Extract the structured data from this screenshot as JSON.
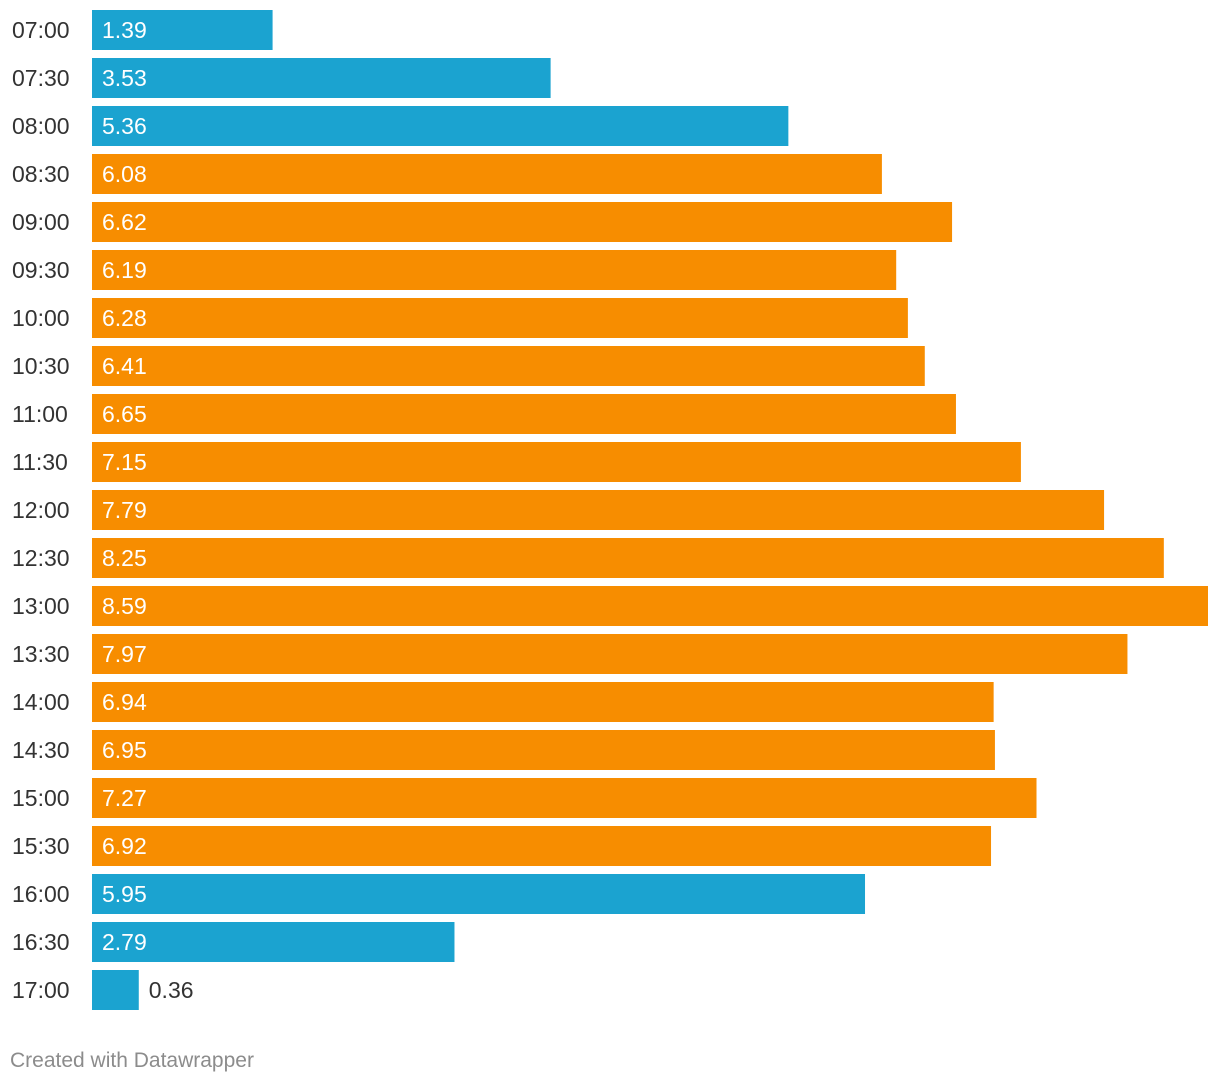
{
  "chart_data": {
    "type": "bar",
    "orientation": "horizontal",
    "categories": [
      "07:00",
      "07:30",
      "08:00",
      "08:30",
      "09:00",
      "09:30",
      "10:00",
      "10:30",
      "11:00",
      "11:30",
      "12:00",
      "12:30",
      "13:00",
      "13:30",
      "14:00",
      "14:30",
      "15:00",
      "15:30",
      "16:00",
      "16:30",
      "17:00"
    ],
    "values": [
      1.39,
      3.53,
      5.36,
      6.08,
      6.62,
      6.19,
      6.28,
      6.41,
      6.65,
      7.15,
      7.79,
      8.25,
      8.59,
      7.97,
      6.94,
      6.95,
      7.27,
      6.92,
      5.95,
      2.79,
      0.36
    ],
    "value_labels": [
      "1.39",
      "3.53",
      "5.36",
      "6.08",
      "6.62",
      "6.19",
      "6.28",
      "6.41",
      "6.65",
      "7.15",
      "7.79",
      "8.25",
      "8.59",
      "7.97",
      "6.94",
      "6.95",
      "7.27",
      "6.92",
      "5.95",
      "2.79",
      "0.36"
    ],
    "highlighted": [
      false,
      false,
      false,
      true,
      true,
      true,
      true,
      true,
      true,
      true,
      true,
      true,
      true,
      true,
      true,
      true,
      true,
      true,
      false,
      false,
      false
    ],
    "xlim": [
      0,
      8.59
    ],
    "title": "",
    "xlabel": "",
    "ylabel": "",
    "grid": false,
    "legend": "none"
  },
  "colors": {
    "base": "#1ba3d0",
    "highlight": "#f78d00",
    "label_inside": "#ffffff",
    "label_outside": "#333333",
    "category_text": "#333333"
  },
  "footer": {
    "credit": "Created with Datawrapper"
  }
}
